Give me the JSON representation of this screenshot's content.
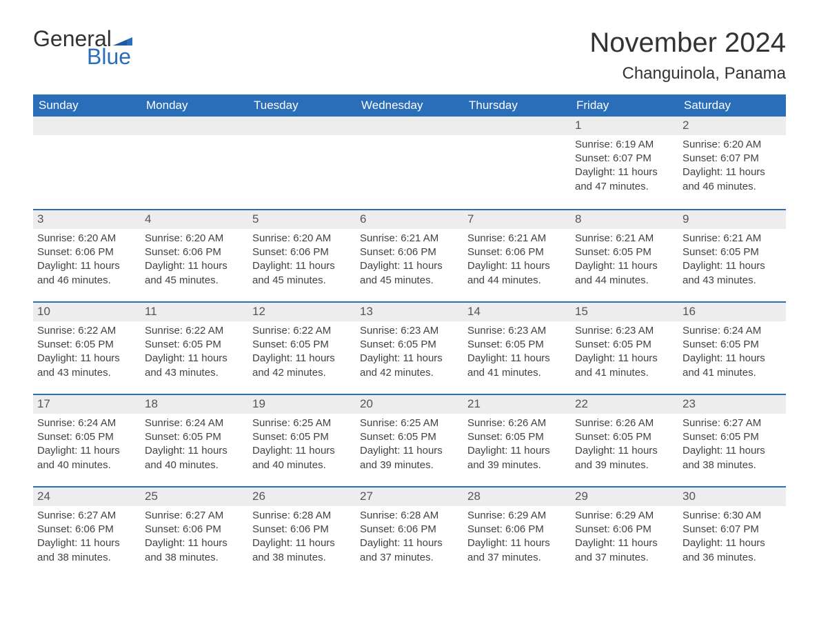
{
  "logo": {
    "general": "General",
    "blue": "Blue"
  },
  "title": "November 2024",
  "location": "Changuinola, Panama",
  "weekdays": [
    "Sunday",
    "Monday",
    "Tuesday",
    "Wednesday",
    "Thursday",
    "Friday",
    "Saturday"
  ],
  "colors": {
    "headerBg": "#2a6db8",
    "headerText": "#ffffff",
    "dayNumBg": "#ededed",
    "borderTop": "#2a6db8",
    "text": "#424242"
  },
  "weeks": [
    [
      {
        "day": "",
        "sunrise": "",
        "sunset": "",
        "daylight": ""
      },
      {
        "day": "",
        "sunrise": "",
        "sunset": "",
        "daylight": ""
      },
      {
        "day": "",
        "sunrise": "",
        "sunset": "",
        "daylight": ""
      },
      {
        "day": "",
        "sunrise": "",
        "sunset": "",
        "daylight": ""
      },
      {
        "day": "",
        "sunrise": "",
        "sunset": "",
        "daylight": ""
      },
      {
        "day": "1",
        "sunrise": "Sunrise: 6:19 AM",
        "sunset": "Sunset: 6:07 PM",
        "daylight": "Daylight: 11 hours and 47 minutes."
      },
      {
        "day": "2",
        "sunrise": "Sunrise: 6:20 AM",
        "sunset": "Sunset: 6:07 PM",
        "daylight": "Daylight: 11 hours and 46 minutes."
      }
    ],
    [
      {
        "day": "3",
        "sunrise": "Sunrise: 6:20 AM",
        "sunset": "Sunset: 6:06 PM",
        "daylight": "Daylight: 11 hours and 46 minutes."
      },
      {
        "day": "4",
        "sunrise": "Sunrise: 6:20 AM",
        "sunset": "Sunset: 6:06 PM",
        "daylight": "Daylight: 11 hours and 45 minutes."
      },
      {
        "day": "5",
        "sunrise": "Sunrise: 6:20 AM",
        "sunset": "Sunset: 6:06 PM",
        "daylight": "Daylight: 11 hours and 45 minutes."
      },
      {
        "day": "6",
        "sunrise": "Sunrise: 6:21 AM",
        "sunset": "Sunset: 6:06 PM",
        "daylight": "Daylight: 11 hours and 45 minutes."
      },
      {
        "day": "7",
        "sunrise": "Sunrise: 6:21 AM",
        "sunset": "Sunset: 6:06 PM",
        "daylight": "Daylight: 11 hours and 44 minutes."
      },
      {
        "day": "8",
        "sunrise": "Sunrise: 6:21 AM",
        "sunset": "Sunset: 6:05 PM",
        "daylight": "Daylight: 11 hours and 44 minutes."
      },
      {
        "day": "9",
        "sunrise": "Sunrise: 6:21 AM",
        "sunset": "Sunset: 6:05 PM",
        "daylight": "Daylight: 11 hours and 43 minutes."
      }
    ],
    [
      {
        "day": "10",
        "sunrise": "Sunrise: 6:22 AM",
        "sunset": "Sunset: 6:05 PM",
        "daylight": "Daylight: 11 hours and 43 minutes."
      },
      {
        "day": "11",
        "sunrise": "Sunrise: 6:22 AM",
        "sunset": "Sunset: 6:05 PM",
        "daylight": "Daylight: 11 hours and 43 minutes."
      },
      {
        "day": "12",
        "sunrise": "Sunrise: 6:22 AM",
        "sunset": "Sunset: 6:05 PM",
        "daylight": "Daylight: 11 hours and 42 minutes."
      },
      {
        "day": "13",
        "sunrise": "Sunrise: 6:23 AM",
        "sunset": "Sunset: 6:05 PM",
        "daylight": "Daylight: 11 hours and 42 minutes."
      },
      {
        "day": "14",
        "sunrise": "Sunrise: 6:23 AM",
        "sunset": "Sunset: 6:05 PM",
        "daylight": "Daylight: 11 hours and 41 minutes."
      },
      {
        "day": "15",
        "sunrise": "Sunrise: 6:23 AM",
        "sunset": "Sunset: 6:05 PM",
        "daylight": "Daylight: 11 hours and 41 minutes."
      },
      {
        "day": "16",
        "sunrise": "Sunrise: 6:24 AM",
        "sunset": "Sunset: 6:05 PM",
        "daylight": "Daylight: 11 hours and 41 minutes."
      }
    ],
    [
      {
        "day": "17",
        "sunrise": "Sunrise: 6:24 AM",
        "sunset": "Sunset: 6:05 PM",
        "daylight": "Daylight: 11 hours and 40 minutes."
      },
      {
        "day": "18",
        "sunrise": "Sunrise: 6:24 AM",
        "sunset": "Sunset: 6:05 PM",
        "daylight": "Daylight: 11 hours and 40 minutes."
      },
      {
        "day": "19",
        "sunrise": "Sunrise: 6:25 AM",
        "sunset": "Sunset: 6:05 PM",
        "daylight": "Daylight: 11 hours and 40 minutes."
      },
      {
        "day": "20",
        "sunrise": "Sunrise: 6:25 AM",
        "sunset": "Sunset: 6:05 PM",
        "daylight": "Daylight: 11 hours and 39 minutes."
      },
      {
        "day": "21",
        "sunrise": "Sunrise: 6:26 AM",
        "sunset": "Sunset: 6:05 PM",
        "daylight": "Daylight: 11 hours and 39 minutes."
      },
      {
        "day": "22",
        "sunrise": "Sunrise: 6:26 AM",
        "sunset": "Sunset: 6:05 PM",
        "daylight": "Daylight: 11 hours and 39 minutes."
      },
      {
        "day": "23",
        "sunrise": "Sunrise: 6:27 AM",
        "sunset": "Sunset: 6:05 PM",
        "daylight": "Daylight: 11 hours and 38 minutes."
      }
    ],
    [
      {
        "day": "24",
        "sunrise": "Sunrise: 6:27 AM",
        "sunset": "Sunset: 6:06 PM",
        "daylight": "Daylight: 11 hours and 38 minutes."
      },
      {
        "day": "25",
        "sunrise": "Sunrise: 6:27 AM",
        "sunset": "Sunset: 6:06 PM",
        "daylight": "Daylight: 11 hours and 38 minutes."
      },
      {
        "day": "26",
        "sunrise": "Sunrise: 6:28 AM",
        "sunset": "Sunset: 6:06 PM",
        "daylight": "Daylight: 11 hours and 38 minutes."
      },
      {
        "day": "27",
        "sunrise": "Sunrise: 6:28 AM",
        "sunset": "Sunset: 6:06 PM",
        "daylight": "Daylight: 11 hours and 37 minutes."
      },
      {
        "day": "28",
        "sunrise": "Sunrise: 6:29 AM",
        "sunset": "Sunset: 6:06 PM",
        "daylight": "Daylight: 11 hours and 37 minutes."
      },
      {
        "day": "29",
        "sunrise": "Sunrise: 6:29 AM",
        "sunset": "Sunset: 6:06 PM",
        "daylight": "Daylight: 11 hours and 37 minutes."
      },
      {
        "day": "30",
        "sunrise": "Sunrise: 6:30 AM",
        "sunset": "Sunset: 6:07 PM",
        "daylight": "Daylight: 11 hours and 36 minutes."
      }
    ]
  ]
}
